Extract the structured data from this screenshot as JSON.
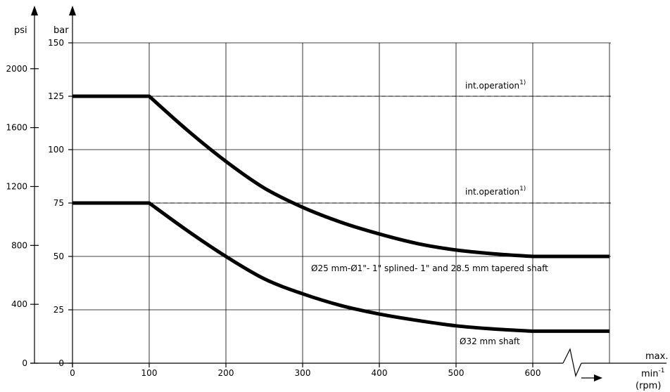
{
  "chart_data": {
    "type": "line",
    "xlabel_top": "max.",
    "xlabel_unit": "min",
    "xlabel_unit_sup": "-1",
    "xlabel_sub": "(rpm)",
    "ylabel_bar": "bar",
    "ylabel_psi": "psi",
    "x_ticks": [
      0,
      100,
      200,
      300,
      400,
      500,
      600
    ],
    "y_ticks_bar": [
      0,
      25,
      50,
      75,
      100,
      125,
      150
    ],
    "y_ticks_psi": [
      0,
      400,
      800,
      1200,
      1600,
      2000
    ],
    "xlim": [
      0,
      700
    ],
    "ylim": [
      0,
      150
    ],
    "grid": true,
    "series": [
      {
        "name": "Ø25 mm-Ø1\"- 1\" splined- 1\" and 28.5 mm tapered shaft",
        "x": [
          0,
          100,
          150,
          200,
          250,
          300,
          350,
          400,
          450,
          500,
          550,
          600,
          700
        ],
        "y": [
          125,
          125,
          109,
          94.5,
          82,
          73,
          66,
          60.5,
          56,
          53,
          51.2,
          50,
          50
        ]
      },
      {
        "name": "Ø32 mm shaft",
        "x": [
          0,
          100,
          150,
          200,
          250,
          300,
          350,
          400,
          450,
          500,
          550,
          600,
          700
        ],
        "y": [
          75,
          75,
          62,
          50,
          39.5,
          32.5,
          27,
          23,
          20,
          17.5,
          16,
          15,
          15
        ]
      }
    ],
    "reference_lines": [
      {
        "y": 125,
        "label": "int.operation",
        "sup": "1)"
      },
      {
        "y": 75,
        "label": "int.operation",
        "sup": "1)"
      }
    ]
  }
}
